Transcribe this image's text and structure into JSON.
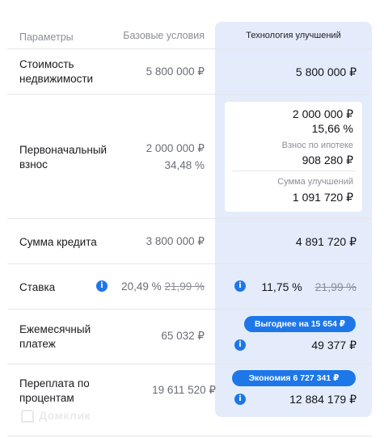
{
  "header": {
    "params": "Параметры",
    "base": "Базовые условия",
    "tech": "Технология улучшений"
  },
  "rows": {
    "cost": {
      "label_line1": "Стоимость",
      "label_line2": "недвижимости",
      "base": "5 800 000 ₽",
      "tech": "5 800 000 ₽"
    },
    "downpayment": {
      "label_line1": "Первоначальный",
      "label_line2": "взнос",
      "base_amount": "2 000 000 ₽",
      "base_percent": "34,48 %",
      "tech_amount": "2 000 000 ₽",
      "tech_percent": "15,66 %",
      "mortgage_label": "Взнос по ипотеке",
      "mortgage_value": "908 280 ₽",
      "improvement_label": "Сумма улучшений",
      "improvement_value": "1 091 720 ₽"
    },
    "loan": {
      "label": "Сумма кредита",
      "base": "3 800 000 ₽",
      "tech": "4 891 720 ₽"
    },
    "rate": {
      "label": "Ставка",
      "base_current": "20,49 %",
      "base_old": "21,99 %",
      "tech_current": "11,75 %",
      "tech_old": "21,99 %"
    },
    "monthly": {
      "label_line1": "Ежемесячный",
      "label_line2": "платеж",
      "base": "65 032 ₽",
      "badge": "Выгоднее на 15 654 ₽",
      "tech": "49 377 ₽"
    },
    "overpay": {
      "label_line1": "Переплата по",
      "label_line2": "процентам",
      "base": "19 611 520 ₽",
      "badge": "Экономия 6 727 341 ₽",
      "tech": "12 884 179 ₽"
    }
  },
  "watermark": "Домклик",
  "colors": {
    "accent": "#1e77e8",
    "panel": "#e4ecfb",
    "muted": "#8b8e96"
  }
}
